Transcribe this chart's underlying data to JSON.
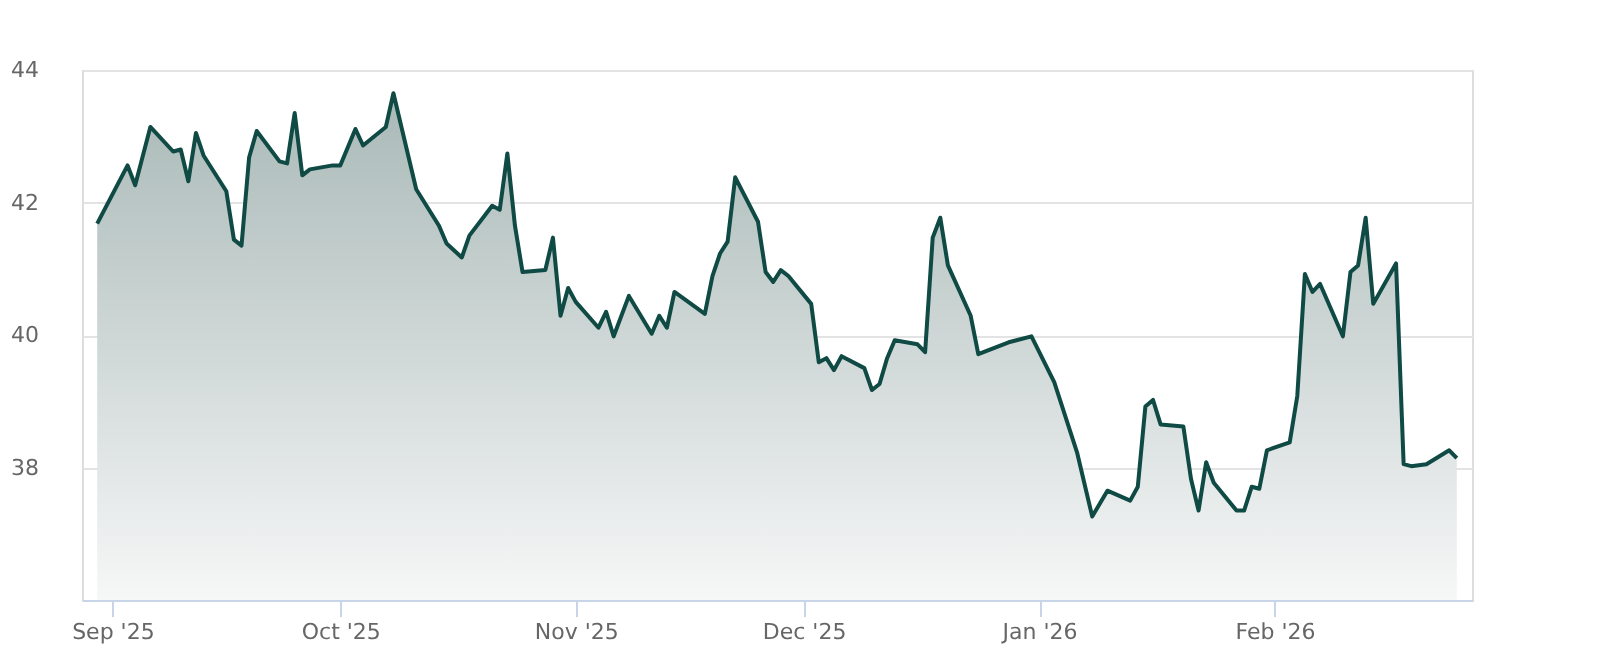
{
  "chart_data": {
    "type": "area",
    "color": "#0f4a44",
    "x": [
      "2025-08-30",
      "2025-09-03",
      "2025-09-04",
      "2025-09-06",
      "2025-09-09",
      "2025-09-10",
      "2025-09-11",
      "2025-09-12",
      "2025-09-13",
      "2025-09-16",
      "2025-09-17",
      "2025-09-18",
      "2025-09-19",
      "2025-09-20",
      "2025-09-23",
      "2025-09-24",
      "2025-09-25",
      "2025-09-26",
      "2025-09-27",
      "2025-09-30",
      "2025-10-01",
      "2025-10-03",
      "2025-10-04",
      "2025-10-07",
      "2025-10-08",
      "2025-10-11",
      "2025-10-14",
      "2025-10-15",
      "2025-10-17",
      "2025-10-18",
      "2025-10-21",
      "2025-10-22",
      "2025-10-23",
      "2025-10-24",
      "2025-10-25",
      "2025-10-28",
      "2025-10-29",
      "2025-10-30",
      "2025-10-31",
      "2025-11-01",
      "2025-11-04",
      "2025-11-05",
      "2025-11-06",
      "2025-11-08",
      "2025-11-11",
      "2025-11-12",
      "2025-11-13",
      "2025-11-14",
      "2025-11-18",
      "2025-11-19",
      "2025-11-20",
      "2025-11-21",
      "2025-11-22",
      "2025-11-25",
      "2025-11-26",
      "2025-11-27",
      "2025-11-28",
      "2025-11-29",
      "2025-12-02",
      "2025-12-03",
      "2025-12-04",
      "2025-12-05",
      "2025-12-06",
      "2025-12-09",
      "2025-12-10",
      "2025-12-11",
      "2025-12-12",
      "2025-12-13",
      "2025-12-16",
      "2025-12-17",
      "2025-12-18",
      "2025-12-19",
      "2025-12-20",
      "2025-12-23",
      "2025-12-24",
      "2025-12-28",
      "2025-12-31",
      "2026-01-03",
      "2026-01-06",
      "2026-01-08",
      "2026-01-10",
      "2026-01-13",
      "2026-01-14",
      "2026-01-15",
      "2026-01-16",
      "2026-01-17",
      "2026-01-20",
      "2026-01-21",
      "2026-01-22",
      "2026-01-23",
      "2026-01-24",
      "2026-01-27",
      "2026-01-28",
      "2026-01-29",
      "2026-01-30",
      "2026-01-31",
      "2026-02-03",
      "2026-02-04",
      "2026-02-05",
      "2026-02-06",
      "2026-02-07",
      "2026-02-10",
      "2026-02-11",
      "2026-02-12",
      "2026-02-13",
      "2026-02-14",
      "2026-02-17",
      "2026-02-18",
      "2026-02-19",
      "2026-02-21",
      "2026-02-24",
      "2026-02-25"
    ],
    "values": [
      41.68,
      42.56,
      42.26,
      43.14,
      42.77,
      42.8,
      42.32,
      43.05,
      42.71,
      42.17,
      41.44,
      41.35,
      42.68,
      43.08,
      42.62,
      42.59,
      43.35,
      42.41,
      42.5,
      42.56,
      42.56,
      43.11,
      42.86,
      43.14,
      43.65,
      42.2,
      41.65,
      41.38,
      41.17,
      41.5,
      41.95,
      41.89,
      42.74,
      41.65,
      40.95,
      40.98,
      41.47,
      40.29,
      40.71,
      40.5,
      40.11,
      40.35,
      39.98,
      40.59,
      40.02,
      40.29,
      40.11,
      40.65,
      40.32,
      40.89,
      41.23,
      41.41,
      42.38,
      41.71,
      40.95,
      40.8,
      40.98,
      40.89,
      40.47,
      39.59,
      39.65,
      39.47,
      39.68,
      39.5,
      39.17,
      39.26,
      39.65,
      39.92,
      39.86,
      39.74,
      41.47,
      41.77,
      41.05,
      40.29,
      39.71,
      39.89,
      39.98,
      39.29,
      38.23,
      37.26,
      37.65,
      37.5,
      37.71,
      38.92,
      39.02,
      38.65,
      38.62,
      37.83,
      37.35,
      38.08,
      37.77,
      37.35,
      37.35,
      37.71,
      37.68,
      38.26,
      38.38,
      39.08,
      40.92,
      40.65,
      40.77,
      39.98,
      40.95,
      41.05,
      41.77,
      40.47,
      41.08,
      38.05,
      38.02,
      38.05,
      38.26,
      38.14
    ],
    "xlim": [
      "2025-08-28",
      "2026-02-27"
    ],
    "xticks": [
      {
        "value": "2025-09-01",
        "label": "Sep '25"
      },
      {
        "value": "2025-10-01",
        "label": "Oct '25"
      },
      {
        "value": "2025-11-01",
        "label": "Nov '25"
      },
      {
        "value": "2025-12-01",
        "label": "Dec '25"
      },
      {
        "value": "2026-01-01",
        "label": "Jan '26"
      },
      {
        "value": "2026-02-01",
        "label": "Feb '26"
      }
    ],
    "ylim": [
      36,
      44
    ],
    "yticks": [
      38,
      40,
      42,
      44
    ],
    "grid": "y",
    "line_style": "solid",
    "marker": "none"
  }
}
